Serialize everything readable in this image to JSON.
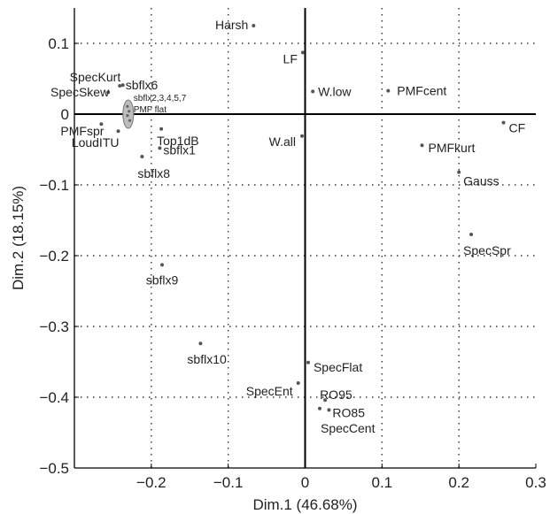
{
  "chart_data": {
    "type": "scatter",
    "xlabel": "Dim.1 (46.68%)",
    "ylabel": "Dim.2 (18.15%)",
    "xlim": [
      -0.3,
      0.3
    ],
    "ylim": [
      -0.5,
      0.15
    ],
    "x_ticks": [
      {
        "value": -0.2,
        "label": "-0.2"
      },
      {
        "value": -0.1,
        "label": "-0.1"
      },
      {
        "value": 0,
        "label": "0"
      },
      {
        "value": 0.1,
        "label": "0.1"
      },
      {
        "value": 0.2,
        "label": "0.2"
      },
      {
        "value": 0.3,
        "label": "0.3"
      }
    ],
    "y_ticks": [
      {
        "value": 0.1,
        "label": "0.1"
      },
      {
        "value": 0,
        "label": "0"
      },
      {
        "value": -0.1,
        "label": "-0.1"
      },
      {
        "value": -0.2,
        "label": "-0.2"
      },
      {
        "value": -0.3,
        "label": "-0.3"
      },
      {
        "value": -0.4,
        "label": "-0.4"
      },
      {
        "value": -0.5,
        "label": "-0.5"
      }
    ],
    "grid": true,
    "grid_style": "dotted",
    "points": [
      {
        "label": "Harsh",
        "x": -0.067,
        "y": 0.125,
        "anchor": "end",
        "dx": -6,
        "dy": -1
      },
      {
        "label": "LF",
        "x": -0.003,
        "y": 0.087,
        "anchor": "end",
        "dx": -6,
        "dy": 7
      },
      {
        "label": "W.low",
        "x": 0.01,
        "y": 0.032,
        "anchor": "start",
        "dx": 6,
        "dy": 0
      },
      {
        "label": "PMFcent",
        "x": 0.108,
        "y": 0.033,
        "anchor": "start",
        "dx": 10,
        "dy": 0
      },
      {
        "label": "CF",
        "x": 0.258,
        "y": -0.012,
        "anchor": "start",
        "dx": 6,
        "dy": 6
      },
      {
        "label": "PMFkurt",
        "x": 0.152,
        "y": -0.044,
        "anchor": "start",
        "dx": 7,
        "dy": 3
      },
      {
        "label": "Gauss",
        "x": 0.2,
        "y": -0.082,
        "anchor": "start",
        "dx": 5,
        "dy": 10
      },
      {
        "label": "W.all",
        "x": -0.004,
        "y": -0.031,
        "anchor": "end",
        "dx": -7,
        "dy": 6
      },
      {
        "label": "SpecSpr",
        "x": 0.216,
        "y": -0.17,
        "anchor": "start",
        "dx": -9,
        "dy": 18
      },
      {
        "label": "SpecKurt",
        "x": -0.241,
        "y": 0.04,
        "anchor": "end",
        "dx": 1,
        "dy": -10
      },
      {
        "label": "sbflx6",
        "x": -0.237,
        "y": 0.041,
        "anchor": "start",
        "dx": 3,
        "dy": 0
      },
      {
        "label": "SpecSkew",
        "x": -0.256,
        "y": 0.031,
        "anchor": "end",
        "dx": 1,
        "dy": 0
      },
      {
        "label": "PMFspr",
        "x": -0.265,
        "y": -0.014,
        "anchor": "end",
        "dx": 3,
        "dy": 8
      },
      {
        "label": "LoudITU",
        "x": -0.243,
        "y": -0.024,
        "anchor": "end",
        "dx": 1,
        "dy": 13
      },
      {
        "label": "Top1dB",
        "x": -0.187,
        "y": -0.021,
        "anchor": "start",
        "dx": -5,
        "dy": 13
      },
      {
        "label": "sbflx1",
        "x": -0.189,
        "y": -0.048,
        "anchor": "start",
        "dx": 4,
        "dy": 2
      },
      {
        "label": "sbflx8",
        "x": -0.212,
        "y": -0.06,
        "anchor": "start",
        "dx": -5,
        "dy": 19
      },
      {
        "label": "sbflx9",
        "x": -0.186,
        "y": -0.213,
        "anchor": "middle",
        "dx": 0,
        "dy": 17
      },
      {
        "label": "sbflx10",
        "x": -0.136,
        "y": -0.324,
        "anchor": "start",
        "dx": -15,
        "dy": 18
      },
      {
        "label": "SpecFlat",
        "x": 0.004,
        "y": -0.351,
        "anchor": "start",
        "dx": 6,
        "dy": 5
      },
      {
        "label": "SpecEnt",
        "x": -0.009,
        "y": -0.38,
        "anchor": "end",
        "dx": -6,
        "dy": 9
      },
      {
        "label": "RO95",
        "x": 0.026,
        "y": -0.404,
        "anchor": "start",
        "dx": -6,
        "dy": -6
      },
      {
        "label": "RO85",
        "x": 0.031,
        "y": -0.418,
        "anchor": "start",
        "dx": 4,
        "dy": 3
      },
      {
        "label": "SpecCent",
        "x": 0.019,
        "y": -0.416,
        "anchor": "start",
        "dx": 1,
        "dy": 22
      }
    ],
    "cluster": {
      "cx": -0.23,
      "cy": 0,
      "labels": [
        "sbflx2,3,4,5,7",
        "PMF flat"
      ],
      "points": [
        {
          "x": -0.231,
          "y": 0.011
        },
        {
          "x": -0.229,
          "y": 0.004
        },
        {
          "x": -0.231,
          "y": -0.002
        },
        {
          "x": -0.228,
          "y": -0.009
        }
      ]
    }
  }
}
